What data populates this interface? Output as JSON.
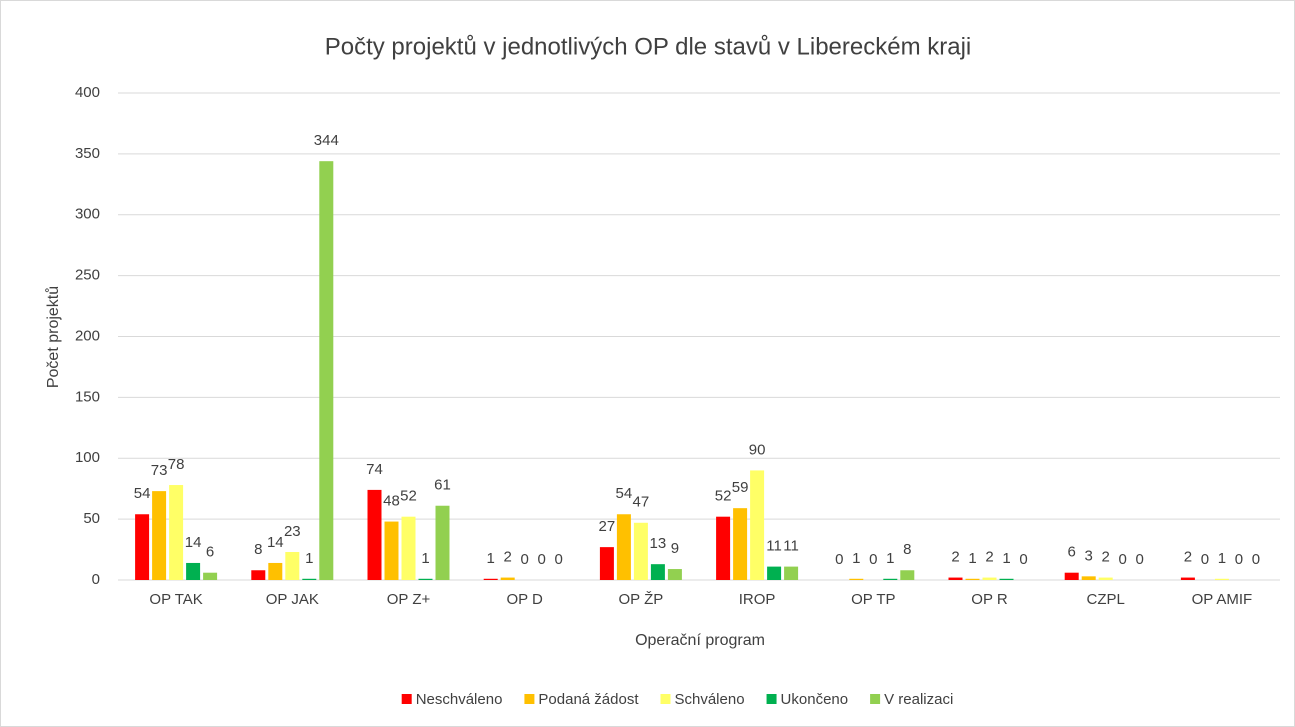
{
  "chart_data": {
    "type": "bar",
    "title": "Počty projektů v jednotlivých OP dle stavů v Libereckém kraji",
    "x_label": "Operační program",
    "y_label": "Počet projektů",
    "categories": [
      "OP TAK",
      "OP JAK",
      "OP Z+",
      "OP D",
      "OP ŽP",
      "IROP",
      "OP TP",
      "OP R",
      "CZPL",
      "OP AMIF"
    ],
    "series": [
      {
        "name": "Neschváleno",
        "color": "#ff0000",
        "values": [
          54,
          8,
          74,
          1,
          27,
          52,
          0,
          2,
          6,
          2
        ]
      },
      {
        "name": "Podaná žádost",
        "color": "#ffc000",
        "values": [
          73,
          14,
          48,
          2,
          54,
          59,
          1,
          1,
          3,
          0
        ]
      },
      {
        "name": "Schváleno",
        "color": "#ffff66",
        "values": [
          78,
          23,
          52,
          0,
          47,
          90,
          0,
          2,
          2,
          1
        ]
      },
      {
        "name": "Ukončeno",
        "color": "#00b050",
        "values": [
          14,
          1,
          1,
          0,
          13,
          11,
          1,
          1,
          0,
          0
        ]
      },
      {
        "name": "V realizaci",
        "color": "#92d050",
        "values": [
          6,
          344,
          61,
          0,
          9,
          11,
          8,
          0,
          0,
          0
        ]
      }
    ],
    "ylim": [
      0,
      400
    ],
    "yticks": [
      0,
      50,
      100,
      150,
      200,
      250,
      300,
      350,
      400
    ],
    "grid": true,
    "legend": "bottom",
    "data_labels": true
  }
}
